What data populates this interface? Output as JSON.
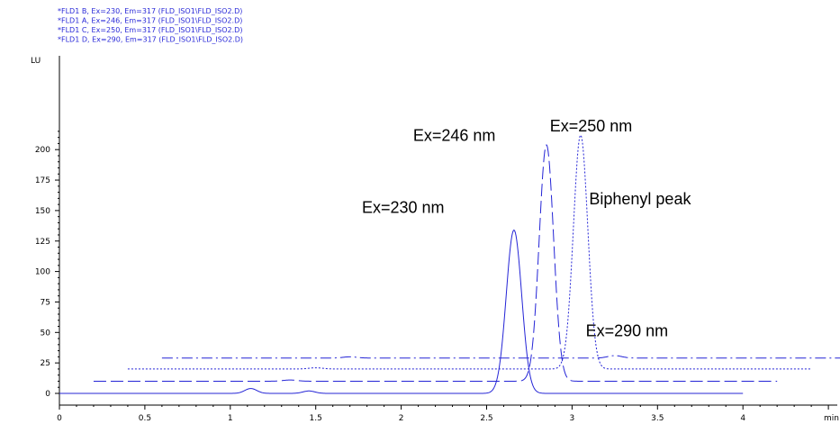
{
  "chart_data": {
    "type": "line",
    "title": "",
    "xlabel": "min",
    "ylabel": "LU",
    "xlim": [
      0,
      4.85
    ],
    "ylim": [
      -2,
      222
    ],
    "x_ticks": [
      0,
      0.5,
      1,
      1.5,
      2,
      2.5,
      3,
      3.5,
      4
    ],
    "x_tick_labels": [
      "0",
      "0.5",
      "1",
      "1.5",
      "2",
      "2.5",
      "3",
      "3.5",
      "4"
    ],
    "y_ticks": [
      0,
      25,
      50,
      75,
      100,
      125,
      150,
      175,
      200
    ],
    "y_tick_labels": [
      "0",
      "25",
      "50",
      "75",
      "100",
      "125",
      "150",
      "175",
      "200"
    ],
    "grid": false,
    "legend_position": "top-left",
    "legend": [
      "*FLD1 B, Ex=230, Em=317 (FLD_ISO1\\FLD_ISO2.D)",
      "*FLD1 A, Ex=246, Em=317 (FLD_ISO1\\FLD_ISO2.D)",
      "*FLD1 C, Ex=250, Em=317 (FLD_ISO1\\FLD_ISO2.D)",
      "*FLD1 D, Ex=290, Em=317 (FLD_ISO1\\FLD_ISO2.D)"
    ],
    "series": [
      {
        "name": "*FLD1 B, Ex=230, Em=317 (FLD_ISO1\\FLD_ISO2.D)",
        "style": "solid",
        "x_range": [
          0,
          4.0
        ],
        "baseline": 0,
        "peaks": [
          {
            "center": 2.66,
            "height": 134,
            "width": 0.045
          },
          {
            "center": 1.12,
            "height": 4,
            "width": 0.035
          },
          {
            "center": 1.46,
            "height": 2,
            "width": 0.035
          }
        ]
      },
      {
        "name": "*FLD1 A, Ex=246, Em=317 (FLD_ISO1\\FLD_ISO2.D)",
        "style": "dashed",
        "x_range": [
          0.2,
          4.2
        ],
        "baseline": 10,
        "peaks": [
          {
            "center": 2.85,
            "height": 194,
            "width": 0.042
          },
          {
            "center": 1.35,
            "height": 1,
            "width": 0.04
          }
        ]
      },
      {
        "name": "*FLD1 C, Ex=250, Em=317 (FLD_ISO1\\FLD_ISO2.D)",
        "style": "dotted",
        "x_range": [
          0.4,
          4.4
        ],
        "baseline": 20,
        "peaks": [
          {
            "center": 3.05,
            "height": 192,
            "width": 0.042
          },
          {
            "center": 1.5,
            "height": 1,
            "width": 0.04
          }
        ]
      },
      {
        "name": "*FLD1 D, Ex=290, Em=317 (FLD_ISO1\\FLD_ISO2.D)",
        "style": "dashdot",
        "x_range": [
          0.6,
          4.85
        ],
        "baseline": 29,
        "peaks": [
          {
            "center": 3.25,
            "height": 2,
            "width": 0.04
          },
          {
            "center": 1.7,
            "height": 1,
            "width": 0.04
          }
        ]
      }
    ],
    "annotations": [
      {
        "text": "Ex=246 nm",
        "x": 2.07,
        "y": 207
      },
      {
        "text": "Ex=250 nm",
        "x": 2.87,
        "y": 215
      },
      {
        "text": "Biphenyl peak",
        "x": 3.1,
        "y": 155
      },
      {
        "text": "Ex=230 nm",
        "x": 1.77,
        "y": 148
      },
      {
        "text": "Ex=290 nm",
        "x": 3.08,
        "y": 47
      }
    ],
    "line_color": "#2424d6"
  }
}
